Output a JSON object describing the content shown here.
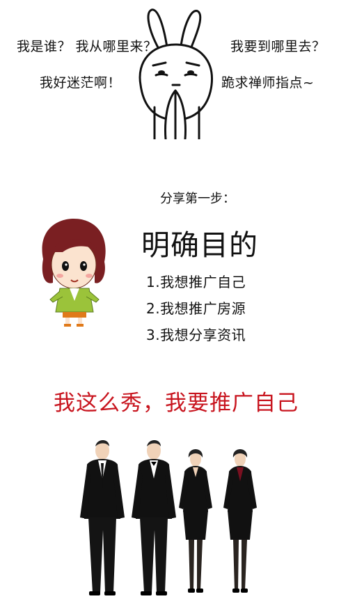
{
  "questions": {
    "q1": "我是谁？ 我从哪里来？",
    "q2": "我要到哪里去？",
    "q3": "我好迷茫啊！",
    "q4": "跪求禅师指点~"
  },
  "step": {
    "title": "分享第一步：",
    "heading": "明确目的",
    "goals": [
      "1.我想推广自己",
      "2.我想推广房源",
      "3.我想分享资讯"
    ]
  },
  "slogan": "我这么秀，我要推广自己",
  "colors": {
    "slogan": "#c8141e",
    "background": "#ffffff"
  },
  "icons": [
    "rabbit-praying-icon",
    "cartoon-girl-icon",
    "business-people-illustration"
  ]
}
